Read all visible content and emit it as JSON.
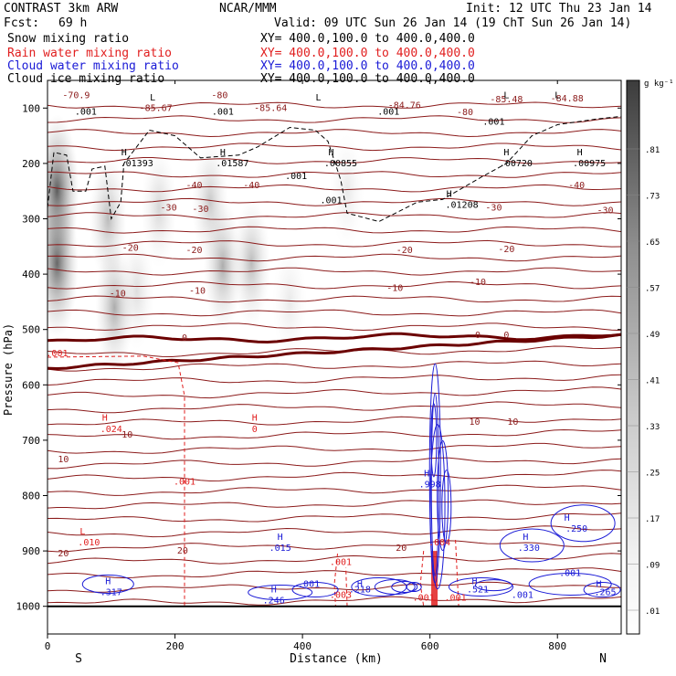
{
  "chart_data": {
    "type": "cross-section contour",
    "header": {
      "model": "CONTRAST  3km ARW",
      "center": "NCAR/MMM",
      "init": "Init: 12 UTC Thu 23 Jan 14",
      "fcst_label": "Fcst:",
      "fcst_value": "69 h",
      "valid": "Valid: 09 UTC Sun 26 Jan 14 (19 ChT Sun 26 Jan 14)"
    },
    "fields": [
      {
        "name": "Snow mixing ratio",
        "xy": "XY=  400.0,100.0 to 400.0,400.0",
        "color": "#000000"
      },
      {
        "name": "Rain water mixing ratio",
        "xy": "XY=  400.0,100.0 to 400.0,400.0",
        "color": "#e11e1e"
      },
      {
        "name": "Cloud water mixing ratio",
        "xy": "XY=  400.0,100.0 to 400.0,400.0",
        "color": "#1a1ad6"
      },
      {
        "name": "Cloud ice mixing ratio",
        "xy": "XY=  400.0,100.0 to 400.0,400.0",
        "color": "#000000"
      }
    ],
    "xlabel": "Distance (km)",
    "ylabel": "Pressure (hPa)",
    "xlim": [
      0,
      900
    ],
    "ylim": [
      1050,
      50
    ],
    "x_ticks": [
      "0",
      "200",
      "400",
      "600",
      "800"
    ],
    "x_tick_values": [
      0,
      200,
      400,
      600,
      800
    ],
    "y_ticks": [
      "100",
      "200",
      "300",
      "400",
      "500",
      "600",
      "700",
      "800",
      "900",
      "1000"
    ],
    "y_tick_values": [
      100,
      200,
      300,
      400,
      500,
      600,
      700,
      800,
      900,
      1000
    ],
    "endpoints": {
      "left": "S",
      "right": "N"
    },
    "colorbar": {
      "unit": "g kg⁻¹",
      "labels": [
        ".81",
        ".73",
        ".65",
        ".57",
        ".49",
        ".41",
        ".33",
        ".25",
        ".17",
        ".09",
        ".01"
      ]
    },
    "temperature_labels": [
      {
        "text": "-70.9",
        "x": 45,
        "p": 82
      },
      {
        "text": "-80",
        "x": 270,
        "p": 82
      },
      {
        "text": "-85.67",
        "x": 170,
        "p": 105
      },
      {
        "text": "-85.64",
        "x": 350,
        "p": 105
      },
      {
        "text": "-84.76",
        "x": 560,
        "p": 100
      },
      {
        "text": "-85.48",
        "x": 720,
        "p": 90
      },
      {
        "text": "-84.88",
        "x": 815,
        "p": 88
      },
      {
        "text": "-80",
        "x": 655,
        "p": 113
      },
      {
        "text": "-40",
        "x": 230,
        "p": 245
      },
      {
        "text": "-40",
        "x": 320,
        "p": 245
      },
      {
        "text": "-40",
        "x": 830,
        "p": 245
      },
      {
        "text": "-30",
        "x": 190,
        "p": 285
      },
      {
        "text": "-30",
        "x": 240,
        "p": 288
      },
      {
        "text": "-30",
        "x": 700,
        "p": 285
      },
      {
        "text": "-30",
        "x": 875,
        "p": 290
      },
      {
        "text": "-20",
        "x": 130,
        "p": 358
      },
      {
        "text": "-20",
        "x": 230,
        "p": 362
      },
      {
        "text": "-20",
        "x": 560,
        "p": 362
      },
      {
        "text": "-20",
        "x": 720,
        "p": 360
      },
      {
        "text": "-10",
        "x": 110,
        "p": 440
      },
      {
        "text": "-10",
        "x": 235,
        "p": 435
      },
      {
        "text": "-10",
        "x": 545,
        "p": 430
      },
      {
        "text": "-10",
        "x": 675,
        "p": 420
      },
      {
        "text": "0",
        "x": 215,
        "p": 520
      },
      {
        "text": "0",
        "x": 675,
        "p": 515
      },
      {
        "text": "0",
        "x": 720,
        "p": 515
      },
      {
        "text": "10",
        "x": 125,
        "p": 695
      },
      {
        "text": "10",
        "x": 670,
        "p": 672
      },
      {
        "text": "10",
        "x": 730,
        "p": 672
      },
      {
        "text": "10",
        "x": 25,
        "p": 740
      },
      {
        "text": "20",
        "x": 25,
        "p": 910
      },
      {
        "text": "20",
        "x": 212,
        "p": 905
      },
      {
        "text": "20",
        "x": 555,
        "p": 900
      }
    ],
    "extrema_labels": [
      {
        "text": "L",
        "x": 165,
        "p": 86
      },
      {
        "text": "L",
        "x": 425,
        "p": 86
      },
      {
        "text": "L",
        "x": 720,
        "p": 82
      },
      {
        "text": "L",
        "x": 800,
        "p": 82
      },
      {
        "text": ".001",
        "x": 60,
        "p": 112
      },
      {
        "text": ".001",
        "x": 275,
        "p": 112
      },
      {
        "text": ".001",
        "x": 535,
        "p": 112
      },
      {
        "text": ".001",
        "x": 700,
        "p": 130
      },
      {
        "text": "H",
        "x": 120,
        "p": 185
      },
      {
        "text": ".01393",
        "x": 140,
        "p": 205
      },
      {
        "text": "H",
        "x": 275,
        "p": 185
      },
      {
        "text": ".01587",
        "x": 290,
        "p": 205
      },
      {
        "text": "H",
        "x": 445,
        "p": 185
      },
      {
        "text": ".00855",
        "x": 460,
        "p": 205
      },
      {
        "text": "H",
        "x": 720,
        "p": 185
      },
      {
        "text": ".00720",
        "x": 735,
        "p": 205
      },
      {
        "text": "H",
        "x": 835,
        "p": 185
      },
      {
        "text": ".00975",
        "x": 850,
        "p": 205
      },
      {
        "text": ".001",
        "x": 390,
        "p": 228
      },
      {
        "text": ".001",
        "x": 445,
        "p": 272
      },
      {
        "text": "H",
        "x": 630,
        "p": 260
      },
      {
        "text": ".01208",
        "x": 650,
        "p": 280
      }
    ],
    "rain_labels": [
      {
        "text": "H",
        "x": 90,
        "p": 665
      },
      {
        "text": ".024",
        "x": 100,
        "p": 685
      },
      {
        "text": "H",
        "x": 325,
        "p": 665
      },
      {
        "text": "0",
        "x": 325,
        "p": 685
      },
      {
        "text": "L",
        "x": 55,
        "p": 870
      },
      {
        "text": ".010",
        "x": 65,
        "p": 890
      },
      {
        "text": ".001",
        "x": 15,
        "p": 548
      },
      {
        "text": ".001",
        "x": 215,
        "p": 780
      },
      {
        "text": ".001",
        "x": 460,
        "p": 925
      },
      {
        "text": ".003",
        "x": 460,
        "p": 985
      },
      {
        "text": ".004",
        "x": 615,
        "p": 890
      },
      {
        "text": ".001",
        "x": 590,
        "p": 990
      },
      {
        "text": ".001",
        "x": 640,
        "p": 990
      }
    ],
    "cloud_labels": [
      {
        "text": "H",
        "x": 365,
        "p": 880
      },
      {
        "text": ".015",
        "x": 365,
        "p": 900
      },
      {
        "text": "H",
        "x": 95,
        "p": 960
      },
      {
        "text": ".317",
        "x": 100,
        "p": 980
      },
      {
        "text": "H",
        "x": 355,
        "p": 975
      },
      {
        "text": ".246",
        "x": 355,
        "p": 995
      },
      {
        "text": ".001",
        "x": 410,
        "p": 965
      },
      {
        "text": "H",
        "x": 490,
        "p": 965
      },
      {
        "text": ".218",
        "x": 490,
        "p": 975
      },
      {
        "text": "H",
        "x": 595,
        "p": 765
      },
      {
        "text": ".998",
        "x": 600,
        "p": 785
      },
      {
        "text": "H",
        "x": 670,
        "p": 960
      },
      {
        "text": ".521",
        "x": 675,
        "p": 975
      },
      {
        "text": "H",
        "x": 750,
        "p": 880
      },
      {
        "text": ".330",
        "x": 755,
        "p": 900
      },
      {
        "text": "H",
        "x": 815,
        "p": 845
      },
      {
        "text": ".250",
        "x": 830,
        "p": 865
      },
      {
        "text": ".001",
        "x": 820,
        "p": 945
      },
      {
        "text": ".001",
        "x": 745,
        "p": 985
      },
      {
        "text": "H",
        "x": 865,
        "p": 965
      },
      {
        "text": ".265",
        "x": 875,
        "p": 980
      }
    ],
    "snow_shading": [
      {
        "x": 15,
        "p": 250,
        "value": 0.6
      },
      {
        "x": 15,
        "p": 380,
        "value": 0.55
      },
      {
        "x": 95,
        "p": 300,
        "value": 0.25
      },
      {
        "x": 105,
        "p": 460,
        "value": 0.3
      },
      {
        "x": 175,
        "p": 280,
        "value": 0.15
      },
      {
        "x": 255,
        "p": 270,
        "value": 0.2
      },
      {
        "x": 275,
        "p": 385,
        "value": 0.3
      },
      {
        "x": 320,
        "p": 380,
        "value": 0.25
      },
      {
        "x": 140,
        "p": 430,
        "value": 0.12
      },
      {
        "x": 380,
        "p": 450,
        "value": 0.08
      },
      {
        "x": 470,
        "p": 250,
        "value": 0.08
      }
    ]
  }
}
